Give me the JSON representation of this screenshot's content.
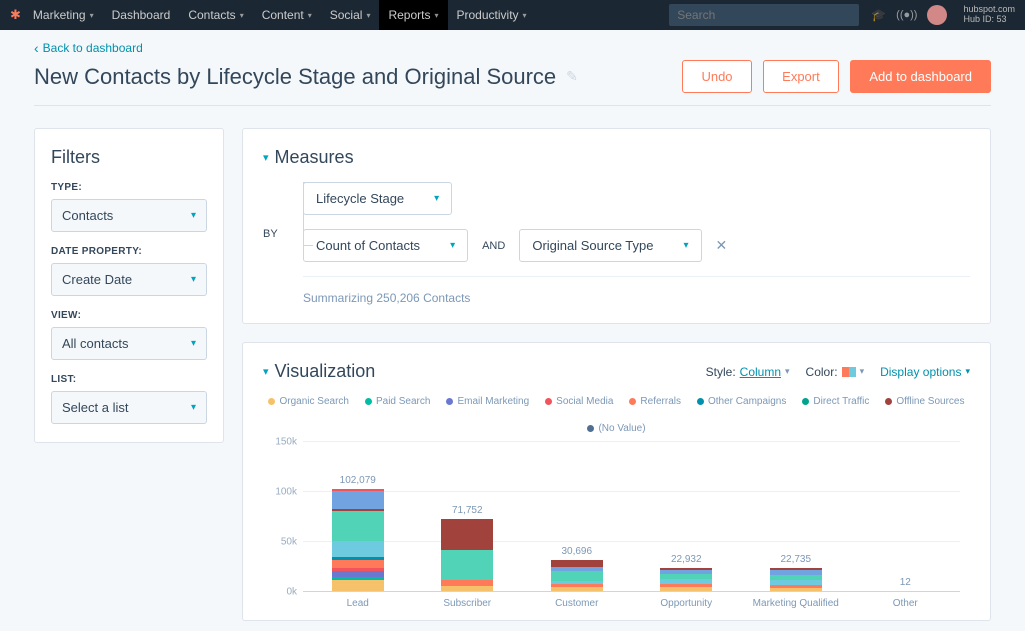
{
  "nav": {
    "brand": "Marketing",
    "items": [
      "Dashboard",
      "Contacts",
      "Content",
      "Social",
      "Reports",
      "Productivity"
    ],
    "active_index": 4,
    "search_placeholder": "Search",
    "hub_domain": "hubspot.com",
    "hub_id": "Hub ID: 53"
  },
  "header": {
    "back": "Back to dashboard",
    "title": "New Contacts by Lifecycle Stage and Original Source",
    "undo": "Undo",
    "export": "Export",
    "add": "Add to dashboard"
  },
  "filters": {
    "title": "Filters",
    "type_label": "TYPE:",
    "type_value": "Contacts",
    "date_prop_label": "DATE PROPERTY:",
    "date_prop_value": "Create Date",
    "view_label": "VIEW:",
    "view_value": "All contacts",
    "list_label": "LIST:",
    "list_value": "Select a list"
  },
  "measures": {
    "title": "Measures",
    "primary": "Lifecycle Stage",
    "by": "BY",
    "secondary": "Count of Contacts",
    "and": "AND",
    "tertiary": "Original Source Type",
    "summary": "Summarizing 250,206 Contacts"
  },
  "viz": {
    "title": "Visualization",
    "style_label": "Style:",
    "style_value": "Column",
    "color_label": "Color:",
    "display_options": "Display options",
    "legend": [
      {
        "label": "Organic Search",
        "color": "#f5c26b"
      },
      {
        "label": "Paid Search",
        "color": "#00bda5"
      },
      {
        "label": "Email Marketing",
        "color": "#6a78d1"
      },
      {
        "label": "Social Media",
        "color": "#f2545b"
      },
      {
        "label": "Referrals",
        "color": "#ff7a59"
      },
      {
        "label": "Other Campaigns",
        "color": "#0091ae"
      },
      {
        "label": "Direct Traffic",
        "color": "#00a38d"
      },
      {
        "label": "Offline Sources",
        "color": "#a2423d"
      },
      {
        "label": "(No Value)",
        "color": "#516f90"
      }
    ],
    "ymax": 150000,
    "yticks": [
      {
        "v": 0,
        "label": "0k"
      },
      {
        "v": 50000,
        "label": "50k"
      },
      {
        "v": 100000,
        "label": "100k"
      },
      {
        "v": 150000,
        "label": "150k"
      }
    ],
    "categories": [
      {
        "label": "Lead",
        "total": "102,079",
        "segments": [
          {
            "color": "#f5c26b",
            "v": 11000
          },
          {
            "color": "#00bda5",
            "v": 3000
          },
          {
            "color": "#6a78d1",
            "v": 6000
          },
          {
            "color": "#f2545b",
            "v": 3000
          },
          {
            "color": "#ff7a59",
            "v": 8000
          },
          {
            "color": "#0091ae",
            "v": 3000
          },
          {
            "color": "#6ecbdf",
            "v": 16000
          },
          {
            "color": "#51d3b7",
            "v": 30000
          },
          {
            "color": "#a2423d",
            "v": 2000
          },
          {
            "color": "#71a3e0",
            "v": 18000
          },
          {
            "color": "#f2545b",
            "v": 2079
          }
        ]
      },
      {
        "label": "Subscriber",
        "total": "71,752",
        "segments": [
          {
            "color": "#f5c26b",
            "v": 5000
          },
          {
            "color": "#ff7a59",
            "v": 6000
          },
          {
            "color": "#51d3b7",
            "v": 30000
          },
          {
            "color": "#a2423d",
            "v": 30752
          }
        ]
      },
      {
        "label": "Customer",
        "total": "30,696",
        "segments": [
          {
            "color": "#f5c26b",
            "v": 4000
          },
          {
            "color": "#ff7a59",
            "v": 3000
          },
          {
            "color": "#6ecbdf",
            "v": 3000
          },
          {
            "color": "#51d3b7",
            "v": 10000
          },
          {
            "color": "#71a3e0",
            "v": 4000
          },
          {
            "color": "#a2423d",
            "v": 6696
          }
        ]
      },
      {
        "label": "Opportunity",
        "total": "22,932",
        "segments": [
          {
            "color": "#f5c26b",
            "v": 4000
          },
          {
            "color": "#ff7a59",
            "v": 3000
          },
          {
            "color": "#6ecbdf",
            "v": 5000
          },
          {
            "color": "#51d3b7",
            "v": 5000
          },
          {
            "color": "#71a3e0",
            "v": 4000
          },
          {
            "color": "#a2423d",
            "v": 1932
          }
        ]
      },
      {
        "label": "Marketing Qualified",
        "total": "22,735",
        "segments": [
          {
            "color": "#f5c26b",
            "v": 3000
          },
          {
            "color": "#ff7a59",
            "v": 3000
          },
          {
            "color": "#6ecbdf",
            "v": 5000
          },
          {
            "color": "#51d3b7",
            "v": 5000
          },
          {
            "color": "#71a3e0",
            "v": 5000
          },
          {
            "color": "#a2423d",
            "v": 1735
          }
        ]
      },
      {
        "label": "Other",
        "total": "12",
        "segments": [
          {
            "color": "#51d3b7",
            "v": 12
          }
        ]
      }
    ]
  },
  "colors": {
    "accent": "#ff7a59",
    "link": "#0091ae",
    "teal": "#00a4bd"
  }
}
